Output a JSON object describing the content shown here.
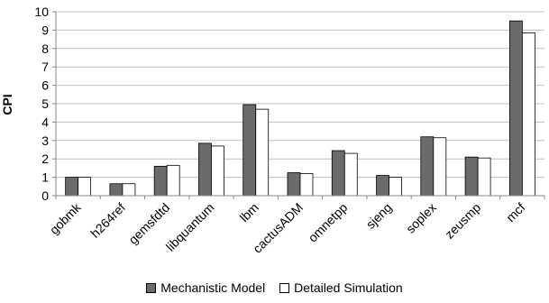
{
  "chart_data": {
    "type": "bar",
    "title": "",
    "xlabel": "",
    "ylabel": "CPI",
    "ylim": [
      0,
      10
    ],
    "yticks": [
      "0",
      "1",
      "2",
      "3",
      "4",
      "5",
      "6",
      "7",
      "8",
      "9",
      "10"
    ],
    "grid": true,
    "legend_position": "bottom",
    "categories": [
      "gobmk",
      "h264ref",
      "gemsfdtd",
      "libquantum",
      "lbm",
      "cactusADM",
      "omnetpp",
      "sjeng",
      "soplex",
      "zeusmp",
      "mcf"
    ],
    "series": [
      {
        "name": "Mechanistic Model",
        "color": "#6b6b6b",
        "values": [
          1.0,
          0.65,
          1.6,
          2.85,
          4.95,
          1.25,
          2.45,
          1.1,
          3.2,
          2.1,
          9.5
        ]
      },
      {
        "name": "Detailed Simulation",
        "color": "#ffffff",
        "values": [
          1.0,
          0.65,
          1.65,
          2.7,
          4.7,
          1.2,
          2.3,
          1.0,
          3.15,
          2.05,
          8.85
        ]
      }
    ]
  }
}
